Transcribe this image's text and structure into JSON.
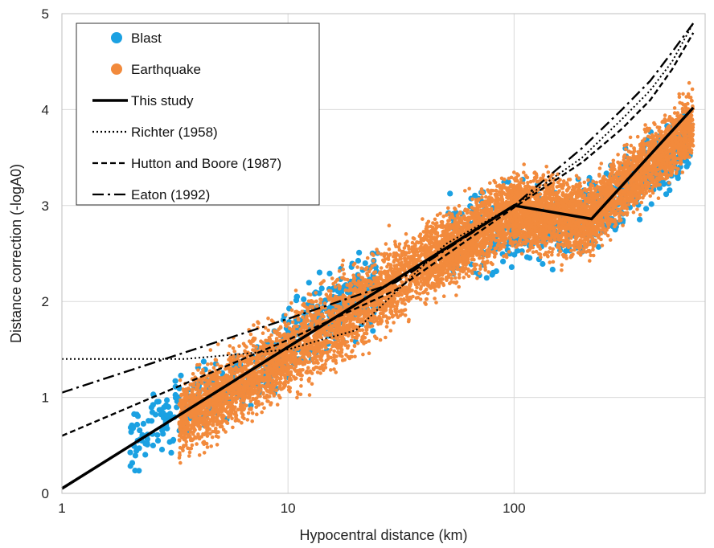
{
  "chart_data": {
    "type": "scatter",
    "xlabel": "Hypocentral distance (km)",
    "ylabel": "Distance correction (-logA0)",
    "x_scale": "log",
    "xlim": [
      1,
      700
    ],
    "ylim": [
      0,
      5
    ],
    "x_ticks": [
      1,
      10,
      100
    ],
    "x_tick_labels": [
      "1",
      "10",
      "100"
    ],
    "y_ticks": [
      0,
      1,
      2,
      3,
      4,
      5
    ],
    "y_tick_labels": [
      "0",
      "1",
      "2",
      "3",
      "4",
      "5"
    ],
    "grid": true,
    "legend_position": "top-left",
    "scatter_series": [
      {
        "name": "Blast",
        "color": "#1ba1e2",
        "clusters": [
          {
            "x_range": [
              2.0,
              10
            ],
            "y_at_start": 0.55,
            "y_at_end": 1.5,
            "spread": 0.35
          },
          {
            "x_range": [
              10,
              25
            ],
            "y_at_start": 1.6,
            "y_at_end": 2.2,
            "spread": 0.4
          },
          {
            "x_range": [
              50,
              220
            ],
            "y_at_start": 2.6,
            "y_at_end": 2.9,
            "spread": 0.45
          },
          {
            "x_range": [
              220,
              600
            ],
            "y_at_start": 2.9,
            "y_at_end": 3.7,
            "spread": 0.4
          }
        ]
      },
      {
        "name": "Earthquake",
        "color": "#f28a3c",
        "clusters": [
          {
            "x_range": [
              3.3,
              10
            ],
            "y_at_start": 0.75,
            "y_at_end": 1.45,
            "spread": 0.4
          },
          {
            "x_range": [
              10,
              40
            ],
            "y_at_start": 1.45,
            "y_at_end": 2.4,
            "spread": 0.45
          },
          {
            "x_range": [
              40,
              100
            ],
            "y_at_start": 2.4,
            "y_at_end": 2.95,
            "spread": 0.4
          },
          {
            "x_range": [
              100,
              220
            ],
            "y_at_start": 2.95,
            "y_at_end": 2.85,
            "spread": 0.4
          },
          {
            "x_range": [
              220,
              620
            ],
            "y_at_start": 2.9,
            "y_at_end": 3.85,
            "spread": 0.35
          }
        ]
      }
    ],
    "line_series": [
      {
        "name": "This study",
        "style": "solid",
        "x": [
          1,
          100,
          220,
          620
        ],
        "y": [
          0.05,
          3.0,
          2.86,
          4.02
        ]
      },
      {
        "name": "Richter (1958)",
        "style": "dotted",
        "x": [
          1,
          3.5,
          6,
          10,
          14,
          20,
          30,
          50,
          100,
          200,
          300,
          400,
          500,
          620
        ],
        "y": [
          1.4,
          1.4,
          1.45,
          1.5,
          1.6,
          1.7,
          2.1,
          2.6,
          3.0,
          3.5,
          3.9,
          4.2,
          4.5,
          4.9
        ]
      },
      {
        "name": "Hutton and Boore (1987)",
        "style": "dashed",
        "x": [
          1,
          10,
          30,
          100,
          200,
          300,
          400,
          500,
          620
        ],
        "y": [
          0.6,
          1.6,
          2.12,
          2.98,
          3.45,
          3.8,
          4.1,
          4.42,
          4.8
        ]
      },
      {
        "name": "Eaton (1992)",
        "style": "dashdot",
        "x": [
          1,
          10,
          30,
          100,
          200,
          300,
          400,
          500,
          620
        ],
        "y": [
          1.05,
          1.82,
          2.2,
          3.0,
          3.6,
          4.0,
          4.3,
          4.6,
          4.9
        ]
      }
    ]
  }
}
